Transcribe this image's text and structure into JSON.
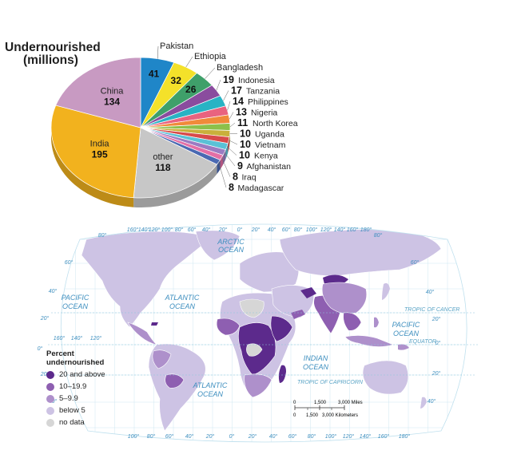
{
  "pie": {
    "title_line1": "Undernourished",
    "title_line2": "(millions)"
  },
  "chart_data": {
    "type": "pie",
    "title": "Undernourished (millions)",
    "slices": [
      {
        "label": "Pakistan",
        "value": 41,
        "color": "#1f86c8"
      },
      {
        "label": "Ethiopia",
        "value": 32,
        "color": "#f4e12a"
      },
      {
        "label": "Bangladesh",
        "value": 26,
        "color": "#3fa06a"
      },
      {
        "label": "Indonesia",
        "value": 19,
        "color": "#8a4c9e"
      },
      {
        "label": "Tanzania",
        "value": 17,
        "color": "#29b3c4"
      },
      {
        "label": "Philippines",
        "value": 14,
        "color": "#e9637f"
      },
      {
        "label": "Nigeria",
        "value": 13,
        "color": "#f08a3a"
      },
      {
        "label": "North Korea",
        "value": 11,
        "color": "#8cc04b"
      },
      {
        "label": "Uganda",
        "value": 10,
        "color": "#c9b03b"
      },
      {
        "label": "Vietnam",
        "value": 10,
        "color": "#d84a4a"
      },
      {
        "label": "Kenya",
        "value": 10,
        "color": "#5ac1d6"
      },
      {
        "label": "Afghanistan",
        "value": 9,
        "color": "#9b7bc2"
      },
      {
        "label": "Iraq",
        "value": 8,
        "color": "#e36fa6"
      },
      {
        "label": "Madagascar",
        "value": 8,
        "color": "#4a69b2"
      },
      {
        "label": "other",
        "value": 118,
        "color": "#c7c7c7"
      },
      {
        "label": "India",
        "value": 195,
        "color": "#f2b21e"
      },
      {
        "label": "China",
        "value": 134,
        "color": "#c89ac2"
      }
    ]
  },
  "map": {
    "oceans": [
      "ARCTIC\nOCEAN",
      "PACIFIC\nOCEAN",
      "ATLANTIC\nOCEAN",
      "INDIAN\nOCEAN",
      "PACIFIC\nOCEAN",
      "ATLANTIC\nOCEAN"
    ],
    "lines": [
      "TROPIC OF CANCER",
      "EQUATOR",
      "TROPIC OF CAPRICORN"
    ],
    "top_lons": [
      "160°",
      "140°",
      "120°",
      "100°",
      "80°",
      "60°",
      "40°",
      "20°",
      "0°",
      "20°",
      "40°",
      "60°",
      "80°",
      "100°",
      "120°",
      "140°",
      "160°",
      "180°"
    ],
    "bottom_lons": [
      "100°",
      "80°",
      "60°",
      "40°",
      "20°",
      "0°",
      "20°",
      "40°",
      "60°",
      "80°",
      "100°",
      "120°",
      "140°",
      "160°",
      "180°"
    ],
    "lats_left": [
      "80°",
      "60°",
      "40°",
      "20°",
      "0°",
      "20°",
      "40°"
    ],
    "lats_right": [
      "80°",
      "60°",
      "40°",
      "20°",
      "0°",
      "20°",
      "40°"
    ],
    "lons_inner": [
      "160°",
      "140°",
      "120°"
    ]
  },
  "legend": {
    "title_line1": "Percent",
    "title_line2": "undernourished",
    "items": [
      {
        "label": "20 and above",
        "color": "#5c2a8c"
      },
      {
        "label": "10–19.9",
        "color": "#8e5fb1"
      },
      {
        "label": "5–9.9",
        "color": "#ae90cb"
      },
      {
        "label": "below 5",
        "color": "#cdc3e4"
      },
      {
        "label": "no data",
        "color": "#d6d6d6"
      }
    ]
  },
  "scale": {
    "miles": [
      "0",
      "1,500",
      "3,000 Miles"
    ],
    "km": [
      "0",
      "1,500",
      "3,000 Kilometers"
    ]
  }
}
